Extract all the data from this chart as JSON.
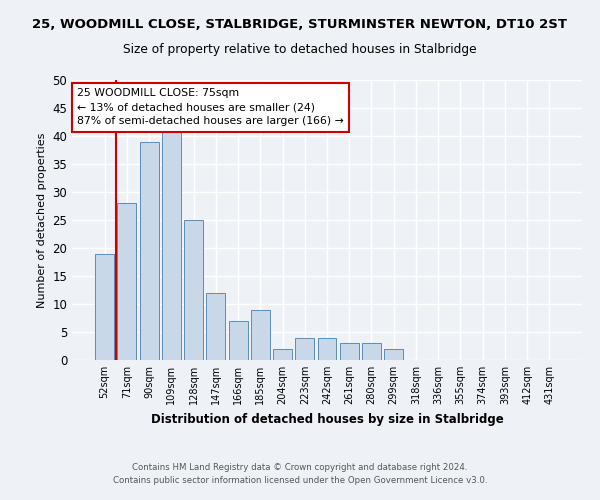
{
  "title": "25, WOODMILL CLOSE, STALBRIDGE, STURMINSTER NEWTON, DT10 2ST",
  "subtitle": "Size of property relative to detached houses in Stalbridge",
  "xlabel": "Distribution of detached houses by size in Stalbridge",
  "ylabel": "Number of detached properties",
  "bar_color": "#c8d8e8",
  "bar_edge_color": "#5b8db8",
  "categories": [
    "52sqm",
    "71sqm",
    "90sqm",
    "109sqm",
    "128sqm",
    "147sqm",
    "166sqm",
    "185sqm",
    "204sqm",
    "223sqm",
    "242sqm",
    "261sqm",
    "280sqm",
    "299sqm",
    "318sqm",
    "336sqm",
    "355sqm",
    "374sqm",
    "393sqm",
    "412sqm",
    "431sqm"
  ],
  "values": [
    19,
    28,
    39,
    41,
    25,
    12,
    7,
    9,
    2,
    4,
    4,
    3,
    3,
    2,
    0,
    0,
    0,
    0,
    0,
    0,
    0
  ],
  "ylim": [
    0,
    50
  ],
  "yticks": [
    0,
    5,
    10,
    15,
    20,
    25,
    30,
    35,
    40,
    45,
    50
  ],
  "property_label": "25 WOODMILL CLOSE: 75sqm",
  "annotation_line1": "← 13% of detached houses are smaller (24)",
  "annotation_line2": "87% of semi-detached houses are larger (166) →",
  "footer1": "Contains HM Land Registry data © Crown copyright and database right 2024.",
  "footer2": "Contains public sector information licensed under the Open Government Licence v3.0.",
  "background_color": "#eef2f7",
  "plot_bg_color": "#eef2f7",
  "grid_color": "#ffffff",
  "vline_color": "#cc0000",
  "annotation_box_color": "#ffffff",
  "annotation_box_edge": "#cc0000"
}
